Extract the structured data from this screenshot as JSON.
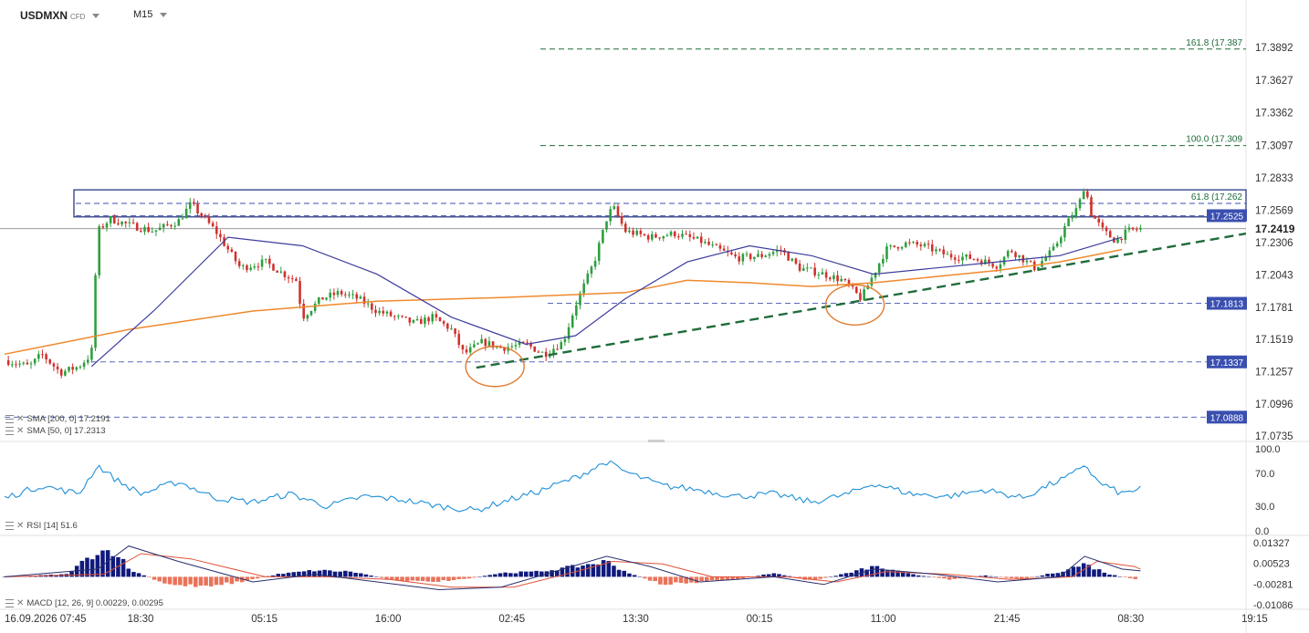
{
  "header": {
    "symbol": "USDMXN",
    "instrument_type": "CFD",
    "timeframe": "M15"
  },
  "indicators": {
    "sma200": "SMA [200, 0] 17.2191",
    "sma50": "SMA [50, 0] 17.2313",
    "rsi": "RSI [14] 51.6",
    "macd": "MACD [12, 26, 9] 0.00229, 0.00295"
  },
  "colors": {
    "bull": "#2e9e3e",
    "bear": "#d0312d",
    "sma200": "#f0892d",
    "sma50": "#3d3d9e",
    "rsi": "#1e90d8",
    "macd_pos": "#101a7c",
    "macd_neg": "#e8735a",
    "trendline": "#1f6b3a",
    "level_tag": "#3a4fb0"
  },
  "chart_data": [
    {
      "type": "candlestick",
      "symbol": "USDMXN",
      "timeframe": "M15",
      "x_tick_labels": [
        "16.09.2026 07:45",
        "18:30",
        "05:15",
        "16:00",
        "02:45",
        "13:30",
        "00:15",
        "11:00",
        "21:45",
        "08:30",
        "19:15"
      ],
      "y_tick_labels": [
        "17.3892",
        "17.3627",
        "17.3362",
        "17.3097",
        "17.2833",
        "17.2569",
        "17.2306",
        "17.2043",
        "17.1781",
        "17.1519",
        "17.1257",
        "17.0996",
        "17.0735"
      ],
      "ylim": [
        17.0735,
        17.3892
      ],
      "current_price": "17.2419",
      "close_path": [
        [
          0,
          17.135
        ],
        [
          0.02,
          17.13
        ],
        [
          0.03,
          17.14
        ],
        [
          0.045,
          17.125
        ],
        [
          0.06,
          17.13
        ],
        [
          0.07,
          17.14
        ],
        [
          0.075,
          17.24
        ],
        [
          0.085,
          17.25
        ],
        [
          0.1,
          17.245
        ],
        [
          0.12,
          17.24
        ],
        [
          0.14,
          17.248
        ],
        [
          0.15,
          17.262
        ],
        [
          0.17,
          17.24
        ],
        [
          0.19,
          17.21
        ],
        [
          0.21,
          17.215
        ],
        [
          0.225,
          17.205
        ],
        [
          0.235,
          17.2
        ],
        [
          0.24,
          17.17
        ],
        [
          0.255,
          17.185
        ],
        [
          0.27,
          17.19
        ],
        [
          0.285,
          17.185
        ],
        [
          0.3,
          17.175
        ],
        [
          0.315,
          17.17
        ],
        [
          0.33,
          17.165
        ],
        [
          0.345,
          17.17
        ],
        [
          0.36,
          17.16
        ],
        [
          0.37,
          17.14
        ],
        [
          0.385,
          17.15
        ],
        [
          0.4,
          17.145
        ],
        [
          0.42,
          17.148
        ],
        [
          0.435,
          17.14
        ],
        [
          0.45,
          17.15
        ],
        [
          0.46,
          17.18
        ],
        [
          0.475,
          17.215
        ],
        [
          0.485,
          17.25
        ],
        [
          0.49,
          17.26
        ],
        [
          0.5,
          17.24
        ],
        [
          0.52,
          17.235
        ],
        [
          0.54,
          17.238
        ],
        [
          0.56,
          17.232
        ],
        [
          0.575,
          17.225
        ],
        [
          0.59,
          17.218
        ],
        [
          0.61,
          17.22
        ],
        [
          0.625,
          17.225
        ],
        [
          0.64,
          17.21
        ],
        [
          0.66,
          17.205
        ],
        [
          0.675,
          17.2
        ],
        [
          0.685,
          17.19
        ],
        [
          0.69,
          17.185
        ],
        [
          0.7,
          17.205
        ],
        [
          0.71,
          17.225
        ],
        [
          0.725,
          17.23
        ],
        [
          0.74,
          17.228
        ],
        [
          0.76,
          17.22
        ],
        [
          0.78,
          17.218
        ],
        [
          0.8,
          17.212
        ],
        [
          0.81,
          17.225
        ],
        [
          0.83,
          17.21
        ],
        [
          0.845,
          17.225
        ],
        [
          0.855,
          17.245
        ],
        [
          0.865,
          17.26
        ],
        [
          0.87,
          17.278
        ],
        [
          0.875,
          17.255
        ],
        [
          0.885,
          17.24
        ],
        [
          0.895,
          17.232
        ],
        [
          0.905,
          17.24
        ],
        [
          0.915,
          17.242
        ]
      ],
      "levels": [
        17.3879,
        17.3094,
        17.2625,
        17.2525,
        17.1813,
        17.1337,
        17.0888
      ],
      "fibonacci": [
        {
          "label": "161.8 (17.387",
          "value": 17.3879
        },
        {
          "label": "100.0 (17.309",
          "value": 17.3094
        },
        {
          "label": "61.8 (17.262",
          "value": 17.2625
        }
      ],
      "price_tags": [
        "17.2525",
        "17.1813",
        "17.1337",
        "17.0888"
      ],
      "resistance_zone": [
        17.2515,
        17.2735
      ],
      "sma200_path": [
        [
          0,
          17.14
        ],
        [
          0.1,
          17.16
        ],
        [
          0.2,
          17.175
        ],
        [
          0.3,
          17.183
        ],
        [
          0.4,
          17.186
        ],
        [
          0.5,
          17.19
        ],
        [
          0.55,
          17.2
        ],
        [
          0.6,
          17.198
        ],
        [
          0.65,
          17.195
        ],
        [
          0.7,
          17.198
        ],
        [
          0.75,
          17.203
        ],
        [
          0.8,
          17.208
        ],
        [
          0.85,
          17.215
        ],
        [
          0.9,
          17.225
        ]
      ],
      "sma50_path": [
        [
          0.07,
          17.13
        ],
        [
          0.12,
          17.175
        ],
        [
          0.18,
          17.235
        ],
        [
          0.24,
          17.228
        ],
        [
          0.3,
          17.205
        ],
        [
          0.36,
          17.17
        ],
        [
          0.42,
          17.148
        ],
        [
          0.46,
          17.155
        ],
        [
          0.5,
          17.185
        ],
        [
          0.55,
          17.215
        ],
        [
          0.6,
          17.228
        ],
        [
          0.65,
          17.22
        ],
        [
          0.7,
          17.205
        ],
        [
          0.75,
          17.21
        ],
        [
          0.8,
          17.215
        ],
        [
          0.85,
          17.22
        ],
        [
          0.9,
          17.235
        ]
      ],
      "uptrend_line": [
        [
          0.38,
          17.129
        ],
        [
          1.0,
          17.238
        ]
      ],
      "annotation_ellipses": [
        [
          0.395,
          17.13
        ],
        [
          0.685,
          17.18
        ]
      ]
    },
    {
      "type": "line",
      "name": "RSI [14]",
      "y_tick_labels": [
        "100.0",
        "70.0",
        "30.0",
        "0.0"
      ],
      "ylim": [
        0,
        100
      ],
      "last_value": 51.6,
      "path": [
        [
          0,
          40
        ],
        [
          0.03,
          55
        ],
        [
          0.06,
          45
        ],
        [
          0.075,
          80
        ],
        [
          0.09,
          62
        ],
        [
          0.11,
          45
        ],
        [
          0.14,
          60
        ],
        [
          0.17,
          40
        ],
        [
          0.2,
          35
        ],
        [
          0.23,
          45
        ],
        [
          0.26,
          30
        ],
        [
          0.29,
          42
        ],
        [
          0.32,
          38
        ],
        [
          0.35,
          30
        ],
        [
          0.38,
          25
        ],
        [
          0.4,
          35
        ],
        [
          0.43,
          48
        ],
        [
          0.46,
          65
        ],
        [
          0.485,
          84
        ],
        [
          0.5,
          72
        ],
        [
          0.53,
          55
        ],
        [
          0.56,
          50
        ],
        [
          0.59,
          42
        ],
        [
          0.62,
          45
        ],
        [
          0.65,
          35
        ],
        [
          0.68,
          45
        ],
        [
          0.7,
          58
        ],
        [
          0.73,
          45
        ],
        [
          0.76,
          42
        ],
        [
          0.79,
          50
        ],
        [
          0.82,
          40
        ],
        [
          0.84,
          55
        ],
        [
          0.86,
          68
        ],
        [
          0.87,
          82
        ],
        [
          0.88,
          60
        ],
        [
          0.9,
          45
        ],
        [
          0.915,
          52
        ]
      ]
    },
    {
      "type": "bar",
      "name": "MACD [12, 26, 9]",
      "y_tick_labels": [
        "0.01327",
        "0.00523",
        "-0.00281",
        "-0.01086"
      ],
      "ylim": [
        -0.01086,
        0.01327
      ],
      "macd_value": 0.00229,
      "signal_value": 0.00295,
      "histogram_path": [
        [
          0,
          0.0
        ],
        [
          0.05,
          0.001
        ],
        [
          0.075,
          0.01
        ],
        [
          0.09,
          0.01
        ],
        [
          0.1,
          0.003
        ],
        [
          0.13,
          -0.003
        ],
        [
          0.16,
          -0.0035
        ],
        [
          0.19,
          -0.002
        ],
        [
          0.22,
          0.001
        ],
        [
          0.25,
          0.0025
        ],
        [
          0.28,
          0.002
        ],
        [
          0.31,
          -0.001
        ],
        [
          0.34,
          -0.002
        ],
        [
          0.37,
          -0.001
        ],
        [
          0.4,
          0.0015
        ],
        [
          0.43,
          0.002
        ],
        [
          0.46,
          0.004
        ],
        [
          0.485,
          0.006
        ],
        [
          0.5,
          0.002
        ],
        [
          0.53,
          -0.003
        ],
        [
          0.56,
          -0.002
        ],
        [
          0.59,
          -0.001
        ],
        [
          0.62,
          0.0015
        ],
        [
          0.65,
          -0.0015
        ],
        [
          0.68,
          0.0015
        ],
        [
          0.7,
          0.004
        ],
        [
          0.73,
          0.001
        ],
        [
          0.76,
          -0.001
        ],
        [
          0.79,
          0.0005
        ],
        [
          0.82,
          -0.001
        ],
        [
          0.85,
          0.002
        ],
        [
          0.87,
          0.005
        ],
        [
          0.89,
          0.001
        ],
        [
          0.91,
          -0.001
        ]
      ],
      "macd_line_path": [
        [
          0,
          0.0
        ],
        [
          0.075,
          0.003
        ],
        [
          0.1,
          0.012
        ],
        [
          0.14,
          0.006
        ],
        [
          0.2,
          -0.002
        ],
        [
          0.25,
          0.001
        ],
        [
          0.3,
          -0.002
        ],
        [
          0.35,
          -0.005
        ],
        [
          0.4,
          -0.004
        ],
        [
          0.45,
          0.003
        ],
        [
          0.485,
          0.008
        ],
        [
          0.52,
          0.004
        ],
        [
          0.56,
          -0.002
        ],
        [
          0.62,
          0.0
        ],
        [
          0.66,
          -0.003
        ],
        [
          0.7,
          0.003
        ],
        [
          0.75,
          0.001
        ],
        [
          0.8,
          -0.002
        ],
        [
          0.85,
          0.0
        ],
        [
          0.87,
          0.008
        ],
        [
          0.9,
          0.003
        ],
        [
          0.915,
          0.0023
        ]
      ],
      "signal_line_path": [
        [
          0,
          0.0
        ],
        [
          0.08,
          0.001
        ],
        [
          0.11,
          0.009
        ],
        [
          0.15,
          0.007
        ],
        [
          0.21,
          0.0
        ],
        [
          0.26,
          0.0
        ],
        [
          0.31,
          -0.001
        ],
        [
          0.36,
          -0.004
        ],
        [
          0.41,
          -0.004
        ],
        [
          0.46,
          0.002
        ],
        [
          0.49,
          0.006
        ],
        [
          0.53,
          0.005
        ],
        [
          0.57,
          0.0
        ],
        [
          0.63,
          0.0
        ],
        [
          0.67,
          -0.002
        ],
        [
          0.71,
          0.002
        ],
        [
          0.76,
          0.001
        ],
        [
          0.81,
          -0.001
        ],
        [
          0.86,
          0.0
        ],
        [
          0.88,
          0.006
        ],
        [
          0.91,
          0.004
        ],
        [
          0.915,
          0.003
        ]
      ]
    }
  ]
}
